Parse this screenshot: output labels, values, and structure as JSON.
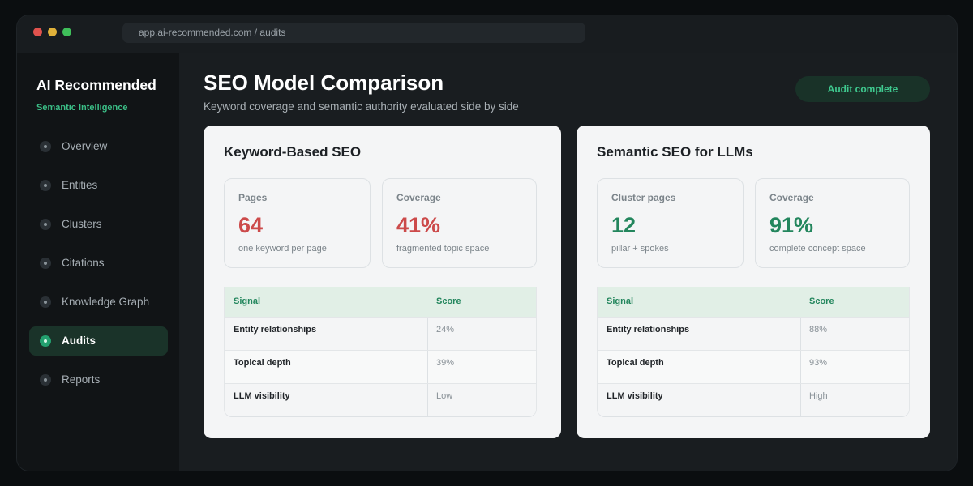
{
  "browser": {
    "url": "app.ai-recommended.com / audits"
  },
  "sidebar": {
    "brand": "AI Recommended",
    "tagline": "Semantic Intelligence",
    "items": [
      {
        "label": "Overview",
        "active": false
      },
      {
        "label": "Entities",
        "active": false
      },
      {
        "label": "Clusters",
        "active": false
      },
      {
        "label": "Citations",
        "active": false
      },
      {
        "label": "Knowledge Graph",
        "active": false
      },
      {
        "label": "Audits",
        "active": true
      },
      {
        "label": "Reports",
        "active": false
      }
    ]
  },
  "header": {
    "title": "SEO Model Comparison",
    "subtitle": "Keyword coverage and semantic authority evaluated side by side",
    "status": "Audit complete"
  },
  "panels": {
    "keyword": {
      "title": "Keyword-Based SEO",
      "stats": [
        {
          "label": "Pages",
          "value": "64",
          "note": "one keyword per page"
        },
        {
          "label": "Coverage",
          "value": "41%",
          "note": "fragmented topic space"
        }
      ],
      "table": {
        "headers": [
          "Signal",
          "Score"
        ],
        "rows": [
          {
            "signal": "Entity relationships",
            "score": "24%"
          },
          {
            "signal": "Topical depth",
            "score": "39%"
          },
          {
            "signal": "LLM visibility",
            "score": "Low"
          }
        ]
      }
    },
    "semantic": {
      "title": "Semantic SEO for LLMs",
      "stats": [
        {
          "label": "Cluster pages",
          "value": "12",
          "note": "pillar + spokes"
        },
        {
          "label": "Coverage",
          "value": "91%",
          "note": "complete concept space"
        }
      ],
      "table": {
        "headers": [
          "Signal",
          "Score"
        ],
        "rows": [
          {
            "signal": "Entity relationships",
            "score": "88%"
          },
          {
            "signal": "Topical depth",
            "score": "93%"
          },
          {
            "signal": "LLM visibility",
            "score": "High"
          }
        ]
      }
    }
  },
  "colors": {
    "accent": "#3bbf87",
    "negative": "#cc4a4a",
    "positive": "#23865d"
  }
}
